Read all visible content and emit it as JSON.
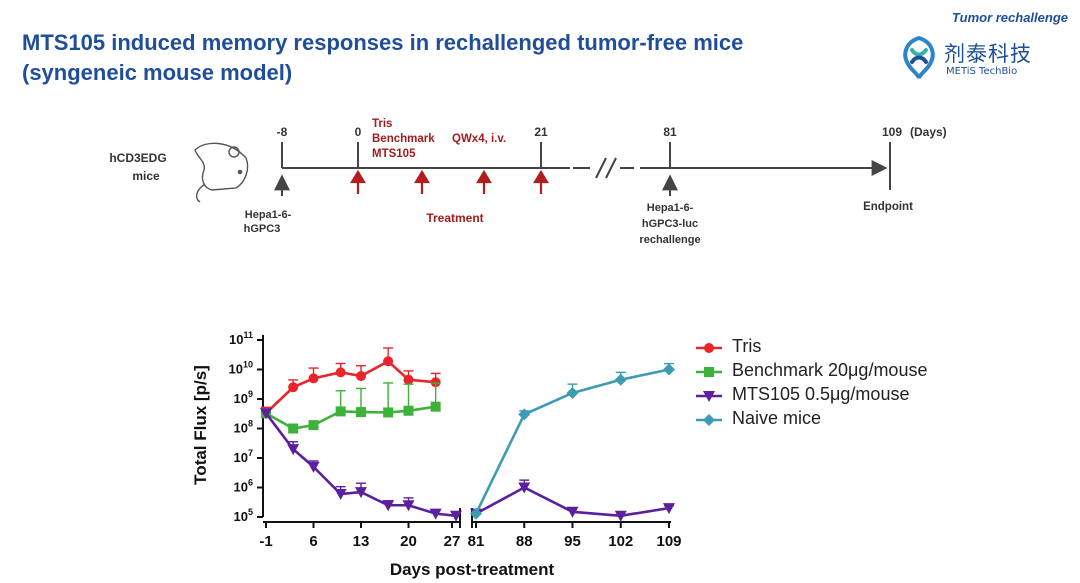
{
  "header": {
    "title_line1": "MTS105 induced memory responses in rechallenged tumor-free mice",
    "title_line2": "(syngeneic mouse model)",
    "tag": "Tumor rechallenge",
    "logo_cn": "剂泰科技",
    "logo_en": "METiS TechBio",
    "logo_icon": "metis-logo-icon"
  },
  "timeline": {
    "subject_line1": "hCD3EDG",
    "subject_line2": "mice",
    "subject_icon": "mouse-icon",
    "ticks": [
      "-8",
      "0",
      "21",
      "81",
      "109"
    ],
    "days_label": "(Days)",
    "regimen": [
      "Tris",
      "Benchmark",
      "MTS105"
    ],
    "dosing": "QWx4, i.v.",
    "inoculation": [
      "Hepa1-6-",
      "hGPC3"
    ],
    "treatment": "Treatment",
    "rechallenge": [
      "Hepa1-6-",
      "hGPC3-luc",
      "rechallenge"
    ],
    "endpoint": "Endpoint",
    "colors": {
      "dark": "#444444",
      "red": "#a11d1d"
    }
  },
  "chart_data": {
    "type": "line",
    "xlabel": "Days post-treatment",
    "ylabel": "Total Flux [p/s]",
    "y_scale": "log",
    "ylim_exp": [
      5,
      11
    ],
    "y_ticks": [
      {
        "e": 11,
        "base": "10",
        "exp": "11"
      },
      {
        "e": 10,
        "base": "10",
        "exp": "10"
      },
      {
        "e": 9,
        "base": "10",
        "exp": "9"
      },
      {
        "e": 8,
        "base": "10",
        "exp": "8"
      },
      {
        "e": 7,
        "base": "10",
        "exp": "7"
      },
      {
        "e": 6,
        "base": "10",
        "exp": "6"
      },
      {
        "e": 5,
        "base": "10",
        "exp": "5"
      }
    ],
    "x_segments": [
      {
        "xlim": [
          -1,
          27
        ],
        "ticks": [
          -1,
          6,
          13,
          20,
          27
        ]
      },
      {
        "xlim": [
          81,
          109
        ],
        "ticks": [
          81,
          88,
          95,
          102,
          109
        ]
      }
    ],
    "x_tick_labels": [
      "-1",
      "6",
      "13",
      "20",
      "27",
      "81",
      "88",
      "95",
      "102",
      "109"
    ],
    "legend_position": "right",
    "series": [
      {
        "name": "Tris",
        "color": "#e8252a",
        "marker": "circle",
        "x": [
          -1,
          3,
          6,
          10,
          13,
          17,
          20,
          24
        ],
        "y": [
          330000000.0,
          2500000000.0,
          5000000000.0,
          8000000000.0,
          6000000000.0,
          19000000000.0,
          4500000000.0,
          3700000000.0
        ],
        "err": [
          0.2,
          0.25,
          0.35,
          0.3,
          0.35,
          0.45,
          0.3,
          0.3
        ]
      },
      {
        "name": "Benchmark 20μg/mouse",
        "color": "#3db13a",
        "marker": "square",
        "x": [
          -1,
          3,
          6,
          10,
          13,
          17,
          20,
          24
        ],
        "y": [
          330000000.0,
          100000000.0,
          130000000.0,
          380000000.0,
          360000000.0,
          350000000.0,
          400000000.0,
          550000000.0
        ],
        "err": [
          0.15,
          0.1,
          0.12,
          0.7,
          0.8,
          1.0,
          0.9,
          0.8
        ]
      },
      {
        "name": "MTS105 0.5μg/mouse",
        "color": "#5c1f9e",
        "marker": "triangle-down",
        "x": [
          -1,
          3,
          6,
          10,
          13,
          17,
          20,
          24,
          27,
          81,
          88,
          95,
          102,
          109
        ],
        "y": [
          330000000.0,
          20000000.0,
          5000000.0,
          600000.0,
          700000.0,
          250000.0,
          250000.0,
          130000.0,
          110000.0,
          130000.0,
          1000000.0,
          150000.0,
          110000.0,
          200000.0
        ],
        "err": [
          0.1,
          0.25,
          0.2,
          0.25,
          0.3,
          0.15,
          0.25,
          0.1,
          0.05,
          0.05,
          0.25,
          0.05,
          0.05,
          0.08
        ]
      },
      {
        "name": "Naive mice",
        "color": "#3e9bb4",
        "marker": "diamond",
        "x": [
          81,
          88,
          95,
          102,
          109
        ],
        "y": [
          130000.0,
          300000000.0,
          1600000000.0,
          4500000000.0,
          10000000000.0
        ],
        "err": [
          0.05,
          0.12,
          0.3,
          0.25,
          0.2
        ]
      }
    ]
  }
}
